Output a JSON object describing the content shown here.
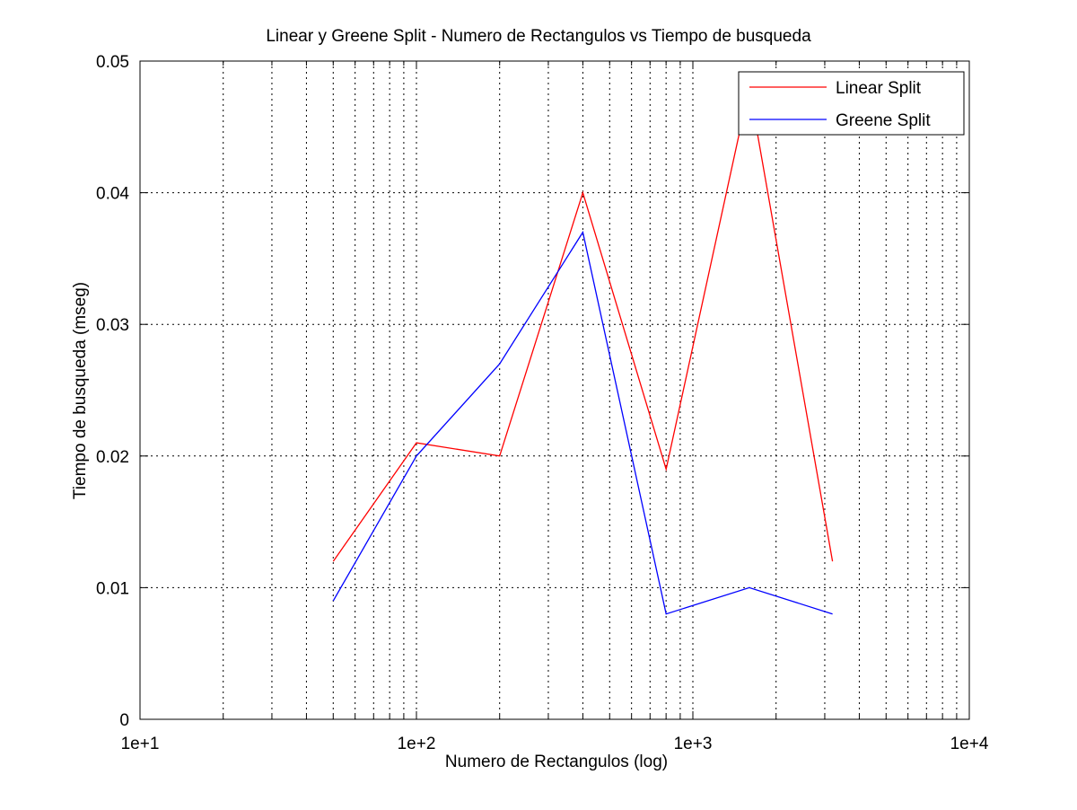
{
  "chart_data": {
    "type": "line",
    "title": "Linear y Greene Split - Numero de Rectangulos vs Tiempo de busqueda",
    "xlabel": "Numero de Rectangulos (log)",
    "ylabel": "Tiempo de busqueda (mseg)",
    "x_scale": "log",
    "xlim": [
      10,
      10000
    ],
    "ylim": [
      0,
      0.05
    ],
    "x_ticks": [
      10,
      100,
      1000,
      10000
    ],
    "x_tick_labels": [
      "1e+1",
      "1e+2",
      "1e+3",
      "1e+4"
    ],
    "y_ticks": [
      0,
      0.01,
      0.02,
      0.03,
      0.04,
      0.05
    ],
    "y_tick_labels": [
      "0",
      "0.01",
      "0.02",
      "0.03",
      "0.04",
      "0.05"
    ],
    "grid": true,
    "legend_position": "top-right",
    "x": [
      50,
      100,
      200,
      400,
      800,
      1600,
      3200
    ],
    "series": [
      {
        "name": "Linear Split",
        "color": "#ff0000",
        "values": [
          0.012,
          0.021,
          0.02,
          0.04,
          0.019,
          0.048,
          0.012
        ]
      },
      {
        "name": "Greene Split",
        "color": "#0000ff",
        "values": [
          0.009,
          0.02,
          0.027,
          0.037,
          0.008,
          0.01,
          0.008
        ]
      }
    ]
  }
}
